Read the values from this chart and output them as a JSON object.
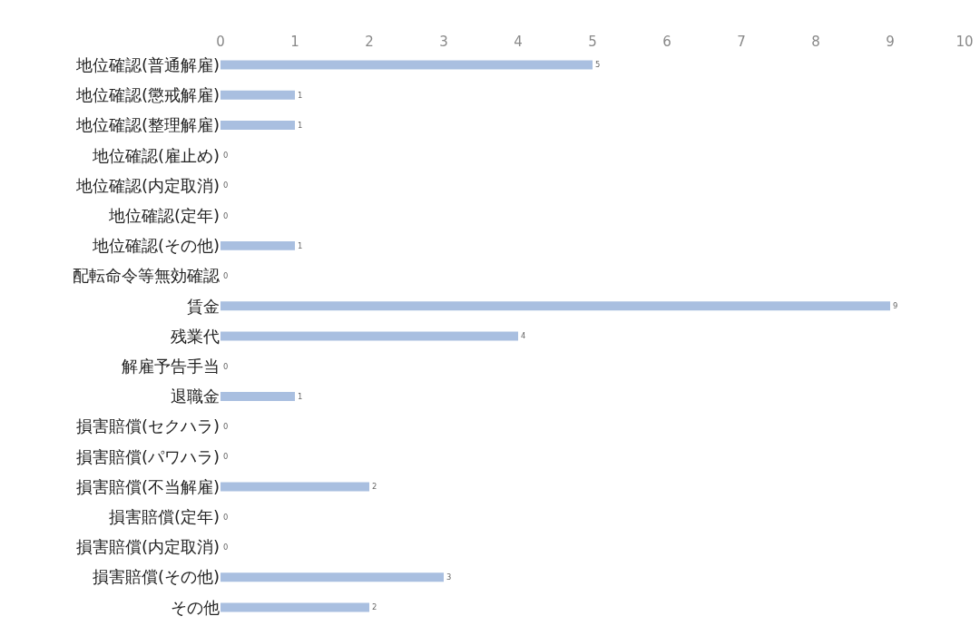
{
  "chart_data": {
    "type": "bar",
    "orientation": "horizontal",
    "categories": [
      "地位確認(普通解雇)",
      "地位確認(懲戒解雇)",
      "地位確認(整理解雇)",
      "地位確認(雇止め)",
      "地位確認(内定取消)",
      "地位確認(定年)",
      "地位確認(その他)",
      "配転命令等無効確認",
      "賃金",
      "残業代",
      "解雇予告手当",
      "退職金",
      "損害賠償(セクハラ)",
      "損害賠償(パワハラ)",
      "損害賠償(不当解雇)",
      "損害賠償(定年)",
      "損害賠償(内定取消)",
      "損害賠償(その他)",
      "その他"
    ],
    "values": [
      5,
      1,
      1,
      0,
      0,
      0,
      1,
      0,
      9,
      4,
      0,
      1,
      0,
      0,
      2,
      0,
      0,
      3,
      2
    ],
    "color": "#a9bfe0",
    "xlim": [
      0,
      10
    ],
    "xticks": [
      0,
      1,
      2,
      3,
      4,
      5,
      6,
      7,
      8,
      9,
      10
    ],
    "data_labels": true,
    "grid": false
  }
}
